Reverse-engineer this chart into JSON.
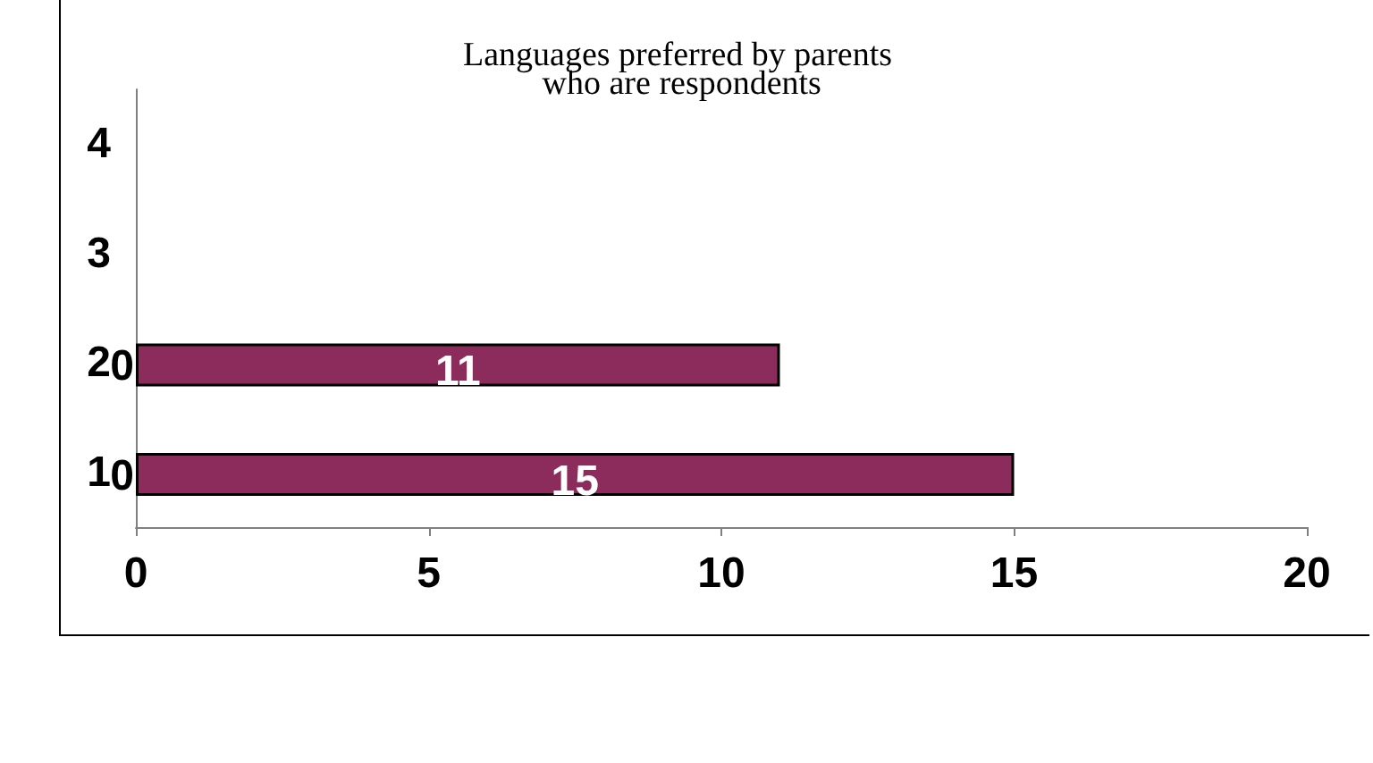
{
  "chart_data": {
    "type": "bar",
    "orientation": "horizontal",
    "title": "Languages preferred by parents\n who are respondents",
    "categories": [
      "4",
      "3",
      "2",
      "1"
    ],
    "series": [
      {
        "color": "#7070c0",
        "values": [
          null,
          null,
          0,
          0
        ]
      },
      {
        "color": "#8b2c5c",
        "values": [
          null,
          null,
          11,
          15
        ]
      }
    ],
    "xlim": [
      0,
      20
    ],
    "xticks": [
      0,
      5,
      10,
      15,
      20
    ],
    "data_labels": true
  }
}
